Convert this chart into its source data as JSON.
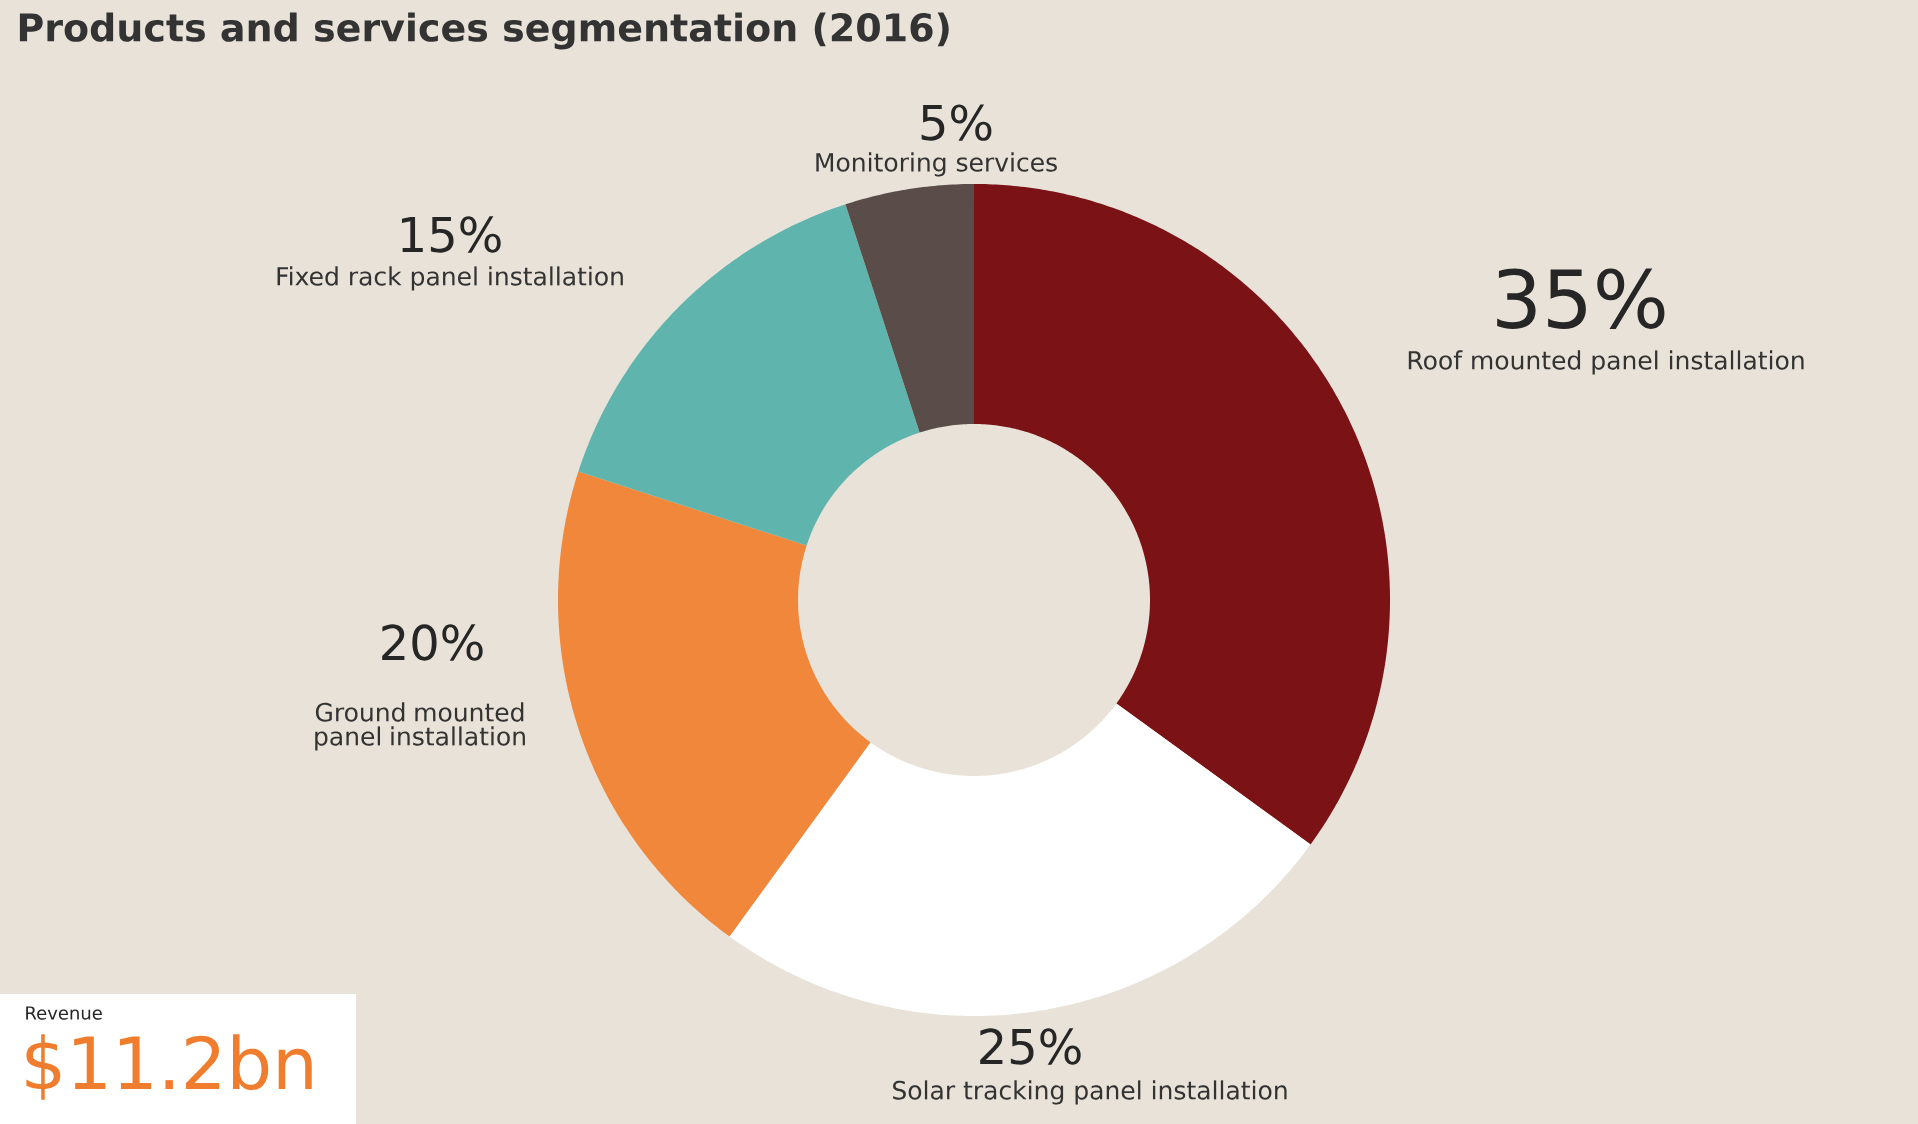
{
  "chart_data": {
    "type": "donut",
    "title": "Products and services segmentation (2016)",
    "categories": [
      "Roof mounted panel installation",
      "Solar tracking panel installation",
      "Ground mounted panel installation",
      "Fixed rack panel installation",
      "Monitoring services"
    ],
    "values": [
      35,
      25,
      20,
      15,
      5
    ],
    "value_labels": [
      "35%",
      "25%",
      "20%",
      "15%",
      "5%"
    ],
    "colors": [
      "#7b1215",
      "#ffffff",
      "#f0873a",
      "#5fb5ad",
      "#5a4c48"
    ],
    "annotations": [
      "Revenue",
      "$11.2bn"
    ]
  }
}
